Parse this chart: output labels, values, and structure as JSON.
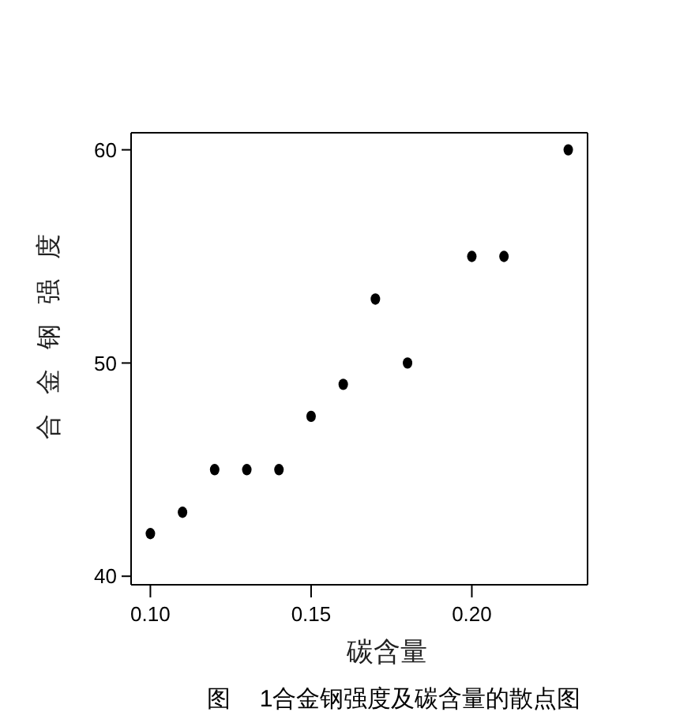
{
  "chart_data": {
    "type": "scatter",
    "annotations": [
      "图 1合金钢强度及碳含量的散点图"
    ],
    "xlabel": "碳含量",
    "ylabel": "合 金 钢 强 度",
    "x": [
      0.1,
      0.11,
      0.12,
      0.13,
      0.14,
      0.15,
      0.16,
      0.17,
      0.18,
      0.2,
      0.21,
      0.23
    ],
    "values": [
      42,
      43,
      45,
      45,
      45,
      47.5,
      49,
      53,
      50,
      55,
      55,
      60
    ],
    "color": "#000000",
    "marker": "circle",
    "xlim": [
      0.094,
      0.236
    ],
    "ylim": [
      39.6,
      60.8
    ],
    "xticks": [
      {
        "value": 0.1,
        "label": "0.10"
      },
      0.15,
      {
        "value": 0.2,
        "label": "0.20"
      }
    ],
    "yticks": [
      40,
      50,
      60
    ]
  }
}
